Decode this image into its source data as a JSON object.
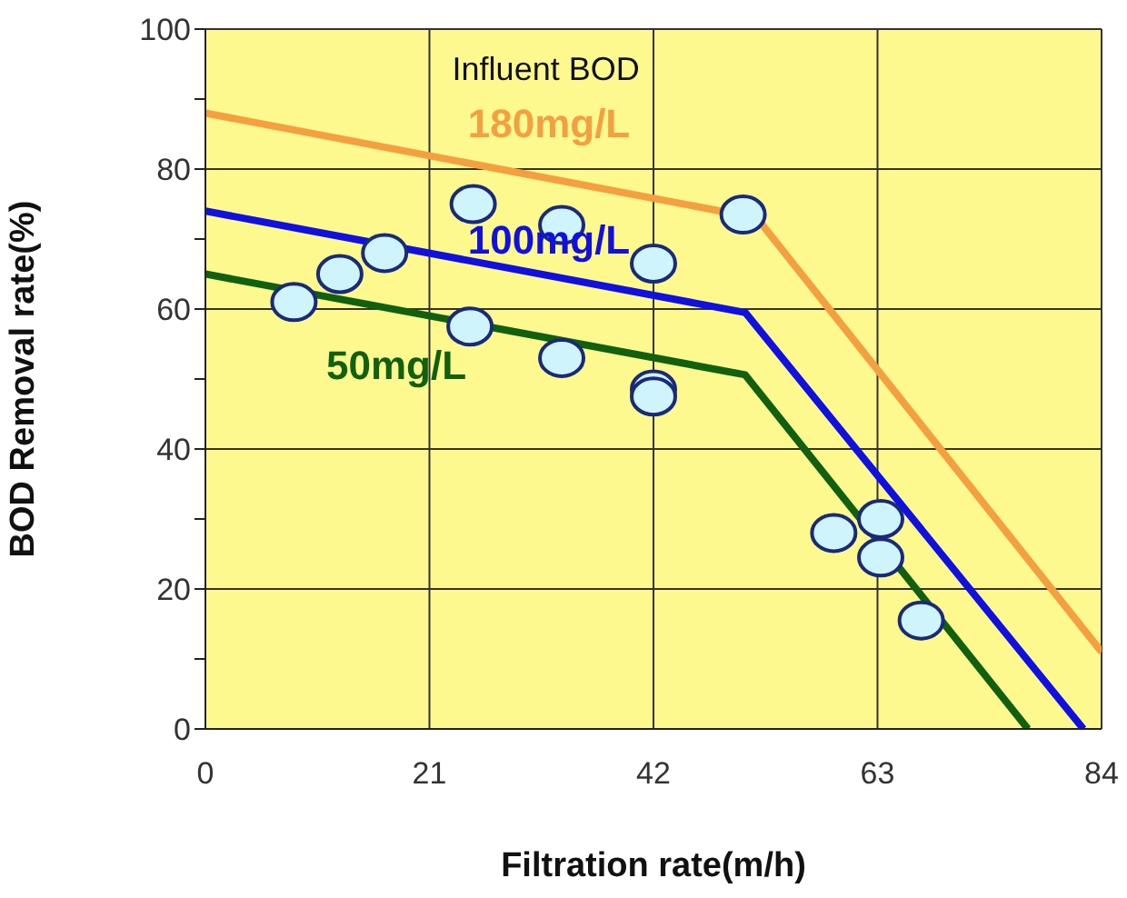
{
  "chart_data": {
    "type": "line",
    "xlabel": "Filtration rate(m/h)",
    "ylabel": "BOD Removal rate(%)",
    "annotations": [
      "Influent BOD"
    ],
    "xlim": [
      0,
      84
    ],
    "xticks": [
      0,
      21,
      42,
      63,
      84
    ],
    "ylim": [
      0,
      100
    ],
    "yticks": [
      0,
      {
        "value": 10,
        "label": null
      },
      20,
      {
        "value": 30,
        "label": null
      },
      40,
      {
        "value": 50,
        "label": null
      },
      60,
      {
        "value": 70,
        "label": null
      },
      80,
      {
        "value": 90,
        "label": null
      },
      100
    ],
    "grid": true,
    "line_style": "solid",
    "series": [
      {
        "name": "180mg/L",
        "color": "#f4a040",
        "x": [
          0,
          51.7,
          84
        ],
        "values": [
          88,
          73,
          11
        ]
      },
      {
        "name": "100mg/L",
        "color": "#1010e0",
        "x": [
          0,
          50.6,
          82.3
        ],
        "values": [
          74,
          59.5,
          0
        ]
      },
      {
        "name": "50mg/L",
        "color": "#106010",
        "x": [
          0,
          50.6,
          77.1
        ],
        "values": [
          65,
          50.6,
          0
        ]
      },
      {
        "type": "scatter",
        "color": "#cff4fb",
        "marker": "circle",
        "x": [
          8.3,
          12.6,
          16.8,
          25.1,
          33.4,
          42,
          50.4,
          24.8,
          33.4,
          42,
          42,
          58.9,
          63.3,
          63.3,
          67.1
        ],
        "values": [
          61,
          65,
          68,
          75,
          72,
          66.5,
          73.5,
          57.5,
          53,
          48.5,
          47.5,
          28,
          30,
          24.5,
          15.5
        ]
      }
    ]
  }
}
